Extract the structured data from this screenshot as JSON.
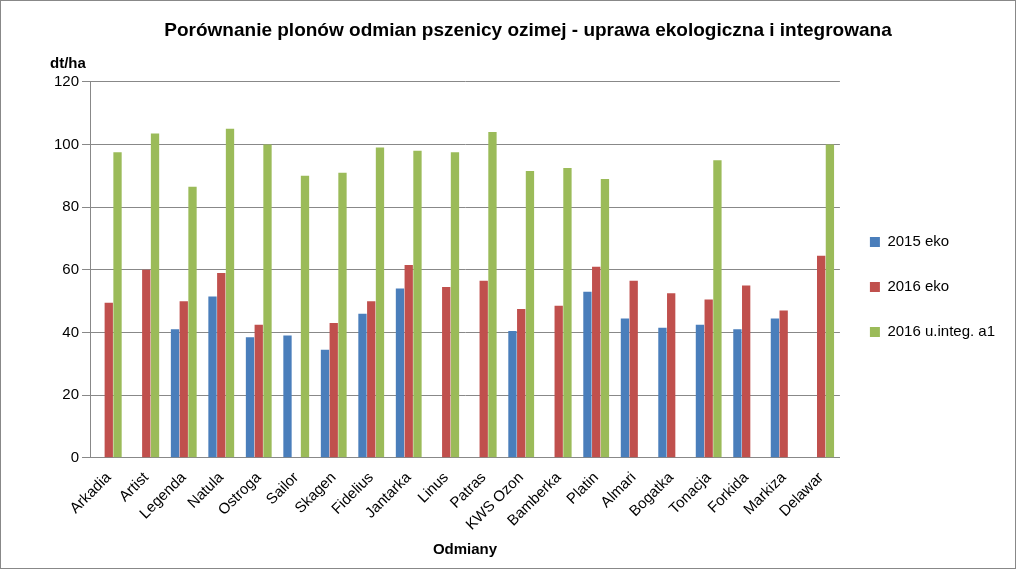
{
  "chart_data": {
    "type": "bar",
    "title": "Porównanie plonów odmian pszenicy ozimej - uprawa ekologiczna i integrowana",
    "y_label": "dt/ha",
    "x_label": "Odmiany",
    "categories": [
      "Arkadia",
      "Artist",
      "Legenda",
      "Natula",
      "Ostroga",
      "Sailor",
      "Skagen",
      "Fidelius",
      "Jantarka",
      "Linus",
      "Patras",
      "KWS Ozon",
      "Bamberka",
      "Platin",
      "Almari",
      "Bogatka",
      "Tonacja",
      "Forkida",
      "Markiza",
      "Delawar"
    ],
    "series": [
      {
        "name": "2015 eko",
        "color": "#4a7ebb",
        "values": [
          null,
          null,
          41,
          51.5,
          38.5,
          39,
          34.5,
          46,
          54,
          null,
          null,
          40.5,
          null,
          53,
          44.5,
          41.5,
          42.5,
          41,
          44.5,
          null
        ]
      },
      {
        "name": "2016 eko",
        "color": "#c0504d",
        "values": [
          49.5,
          60,
          50,
          59,
          42.5,
          null,
          43,
          50,
          61.5,
          54.5,
          56.5,
          47.5,
          48.5,
          61,
          56.5,
          52.5,
          50.5,
          55,
          47,
          64.5
        ]
      },
      {
        "name": "2016 u.integ. a1",
        "color": "#9bbb59",
        "values": [
          97.5,
          103.5,
          86.5,
          105,
          100,
          90,
          91,
          99,
          98,
          97.5,
          104,
          91.5,
          92.5,
          89,
          null,
          null,
          95,
          null,
          null,
          100
        ]
      }
    ],
    "ylim": [
      0,
      120
    ],
    "yticks": [
      0,
      20,
      40,
      60,
      80,
      100,
      120
    ],
    "grid": true,
    "legend": "right"
  }
}
